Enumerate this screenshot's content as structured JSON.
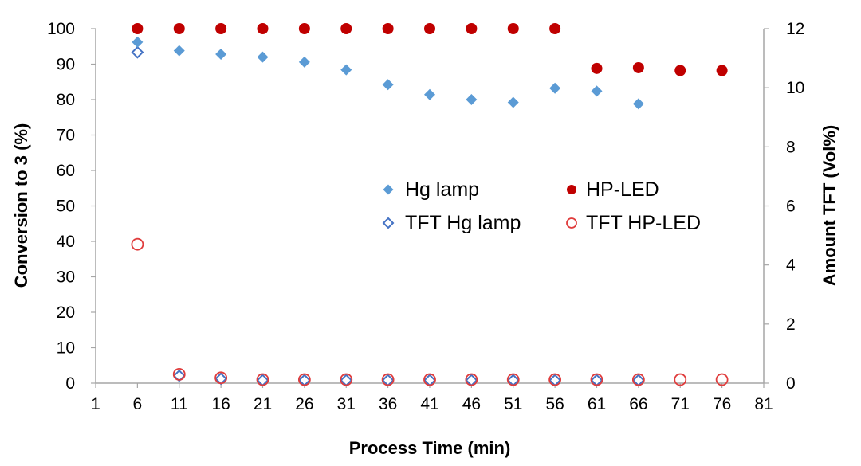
{
  "chart_data": {
    "type": "scatter",
    "title": "",
    "xlabel": "Process Time (min)",
    "ylabel_left": "Conversion to 3 (%)",
    "ylabel_right": "Amount TFT (Vol%)",
    "xlim": [
      1,
      81
    ],
    "x_ticks": [
      1,
      6,
      11,
      16,
      21,
      26,
      31,
      36,
      41,
      46,
      51,
      56,
      61,
      66,
      71,
      76,
      81
    ],
    "ylim_left": [
      0,
      100
    ],
    "y_ticks_left": [
      0,
      10,
      20,
      30,
      40,
      50,
      60,
      70,
      80,
      90,
      100
    ],
    "ylim_right": [
      0,
      12
    ],
    "y_ticks_right": [
      0,
      2,
      4,
      6,
      8,
      10,
      12
    ],
    "grid": false,
    "legend_position": "center-right",
    "series": [
      {
        "name": "Hg lamp",
        "axis": "left",
        "marker": "diamond-filled",
        "color": "#5b9bd5",
        "points": [
          [
            6,
            96.2
          ],
          [
            11,
            93.8
          ],
          [
            16,
            92.8
          ],
          [
            21,
            92.0
          ],
          [
            26,
            90.6
          ],
          [
            31,
            88.4
          ],
          [
            36,
            84.2
          ],
          [
            41,
            81.4
          ],
          [
            46,
            80.0
          ],
          [
            51,
            79.2
          ],
          [
            56,
            83.2
          ],
          [
            61,
            82.4
          ],
          [
            66,
            78.8
          ]
        ]
      },
      {
        "name": "HP-LED",
        "axis": "left",
        "marker": "circle-filled",
        "color": "#c00000",
        "points": [
          [
            6,
            100
          ],
          [
            11,
            100
          ],
          [
            16,
            100
          ],
          [
            21,
            100
          ],
          [
            26,
            100
          ],
          [
            31,
            100
          ],
          [
            36,
            100
          ],
          [
            41,
            100
          ],
          [
            46,
            100
          ],
          [
            51,
            100
          ],
          [
            56,
            100
          ],
          [
            61,
            88.8
          ],
          [
            66,
            89.0
          ],
          [
            71,
            88.2
          ],
          [
            76,
            88.2
          ]
        ]
      },
      {
        "name": "TFT Hg lamp",
        "axis": "right",
        "marker": "diamond-open",
        "color": "#4472c4",
        "points": [
          [
            6,
            11.2
          ],
          [
            11,
            0.25
          ],
          [
            16,
            0.15
          ],
          [
            21,
            0.1
          ],
          [
            26,
            0.1
          ],
          [
            31,
            0.1
          ],
          [
            36,
            0.1
          ],
          [
            41,
            0.1
          ],
          [
            46,
            0.1
          ],
          [
            51,
            0.1
          ],
          [
            56,
            0.1
          ],
          [
            61,
            0.1
          ],
          [
            66,
            0.1
          ]
        ]
      },
      {
        "name": "TFT HP-LED",
        "axis": "right",
        "marker": "circle-open",
        "color": "#e03c3c",
        "points": [
          [
            6,
            4.7
          ],
          [
            11,
            0.3
          ],
          [
            16,
            0.18
          ],
          [
            21,
            0.12
          ],
          [
            26,
            0.12
          ],
          [
            31,
            0.12
          ],
          [
            36,
            0.12
          ],
          [
            41,
            0.12
          ],
          [
            46,
            0.12
          ],
          [
            51,
            0.12
          ],
          [
            56,
            0.12
          ],
          [
            61,
            0.12
          ],
          [
            66,
            0.12
          ],
          [
            71,
            0.12
          ],
          [
            76,
            0.12
          ]
        ]
      }
    ]
  }
}
